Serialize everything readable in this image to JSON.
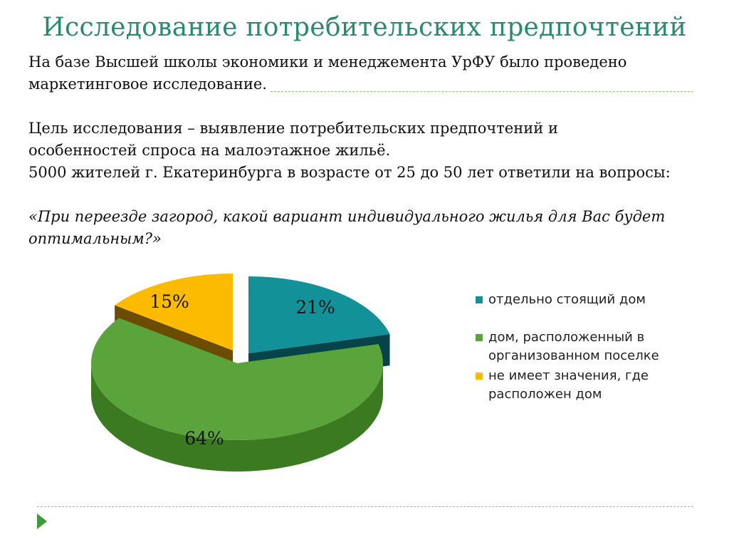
{
  "title": "Исследование потребительских предпочтений",
  "paragraphs": {
    "p1_line1": "На базе Высшей школы экономики и менеджемента УрФУ было проведено",
    "p1_line2": "маркетинговое исследование.",
    "p2_line1": "Цель исследования – выявление потребительских предпочтений и",
    "p2_line2": "особенностей спроса на малоэтажное жильё.",
    "p3_line1": "5000 жителей г. Екатеринбурга в возрасте от 25 до 50 лет ответили на вопросы:",
    "question_line1": "«При переезде загород, какой вариант индивидуального жилья для Вас будет",
    "question_line2": "оптимальным?»"
  },
  "chart_data": {
    "type": "pie",
    "style": "3d-exploded",
    "legend_position": "right",
    "slices": [
      {
        "label": "отдельно стоящий дом",
        "value": 21,
        "data_label": "21%",
        "color": "#129199",
        "side_color": "#074449"
      },
      {
        "label": "дом, расположенный в организованном поселке",
        "value": 64,
        "data_label": "64%",
        "color": "#5aa43b",
        "side_color": "#3c7a22"
      },
      {
        "label": "не имеет значения, где расположен дом",
        "value": 15,
        "data_label": "15%",
        "color": "#fdbb00",
        "side_color": "#6c4c00"
      }
    ]
  },
  "legend": {
    "item0": "отдельно стоящий дом",
    "item1_line1": "дом, расположенный в",
    "item1_line2": "организованном поселке",
    "item2_line1": "не имеет значения, где",
    "item2_line2": "расположен дом"
  },
  "colors": {
    "title": "#2b8a6c",
    "rule": "#8cc26e",
    "nav_arrow": "#3f9a3a"
  },
  "icons": {
    "nav": "play-arrow-icon"
  }
}
